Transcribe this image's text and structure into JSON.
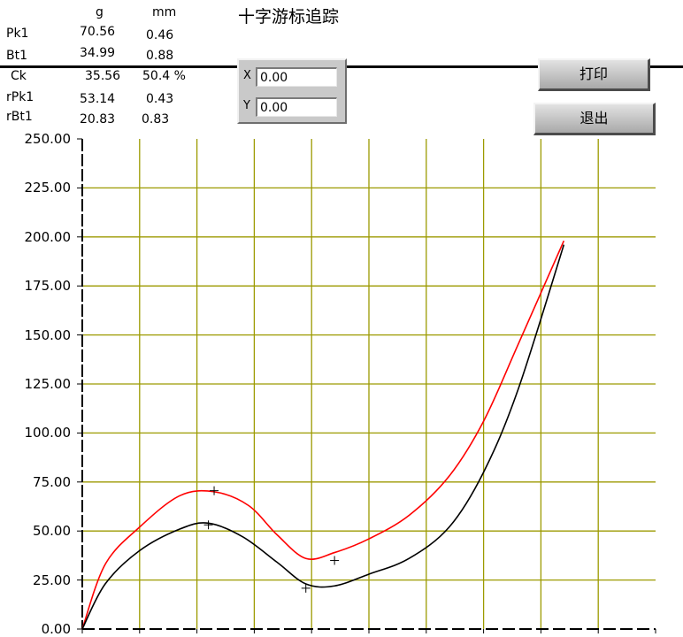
{
  "title": "十字游标追踪",
  "readout": {
    "unit_g": "g",
    "unit_mm": "mm",
    "rows": [
      {
        "label": "Pk1",
        "g": "70.56",
        "mm": "0.46"
      },
      {
        "label": "Bt1",
        "g": "34.99",
        "mm": "0.88"
      },
      {
        "label": "Ck",
        "g": "35.56",
        "mm": "50.4 %"
      },
      {
        "label": "rPk1",
        "g": "53.14",
        "mm": "0.43"
      },
      {
        "label": "rBt1",
        "g": "20.83",
        "mm": "0.83"
      }
    ]
  },
  "cursor": {
    "x_label": "X",
    "x_value": "0.00",
    "y_label": "Y",
    "y_value": "0.00"
  },
  "buttons": {
    "print_label": "打印",
    "exit_label": "退出"
  },
  "colors": {
    "grid": "#9c9a00",
    "red_curve": "#ff0000",
    "black_curve": "#000000"
  },
  "chart_data": {
    "type": "line",
    "title": "",
    "xlabel": "",
    "ylabel": "",
    "ylim": [
      0,
      250
    ],
    "xlim": [
      0,
      1.0
    ],
    "y_tick_labels": [
      "250.00",
      "225.00",
      "200.00",
      "175.00",
      "150.00",
      "125.00",
      "100.00",
      "75.00",
      "50.00",
      "25.00",
      "0.00"
    ],
    "grid": true,
    "series": [
      {
        "color": "red",
        "x": [
          0.0,
          0.04,
          0.1,
          0.17,
          0.23,
          0.29,
          0.34,
          0.39,
          0.44,
          0.5,
          0.57,
          0.64,
          0.7,
          0.76,
          0.84
        ],
        "y": [
          0,
          33,
          52,
          68,
          70,
          63,
          48,
          36,
          39,
          46,
          58,
          78,
          106,
          145,
          198
        ],
        "markers": [
          {
            "x": 0.23,
            "y": 70.56
          },
          {
            "x": 0.44,
            "y": 34.99
          }
        ]
      },
      {
        "color": "black",
        "x": [
          0.0,
          0.04,
          0.1,
          0.17,
          0.22,
          0.28,
          0.34,
          0.39,
          0.44,
          0.5,
          0.57,
          0.64,
          0.7,
          0.76,
          0.84
        ],
        "y": [
          0,
          23,
          40,
          51,
          54,
          47,
          34,
          23,
          22,
          28,
          36,
          52,
          80,
          122,
          196
        ],
        "markers": [
          {
            "x": 0.22,
            "y": 53.14
          },
          {
            "x": 0.39,
            "y": 20.83
          }
        ]
      }
    ]
  }
}
